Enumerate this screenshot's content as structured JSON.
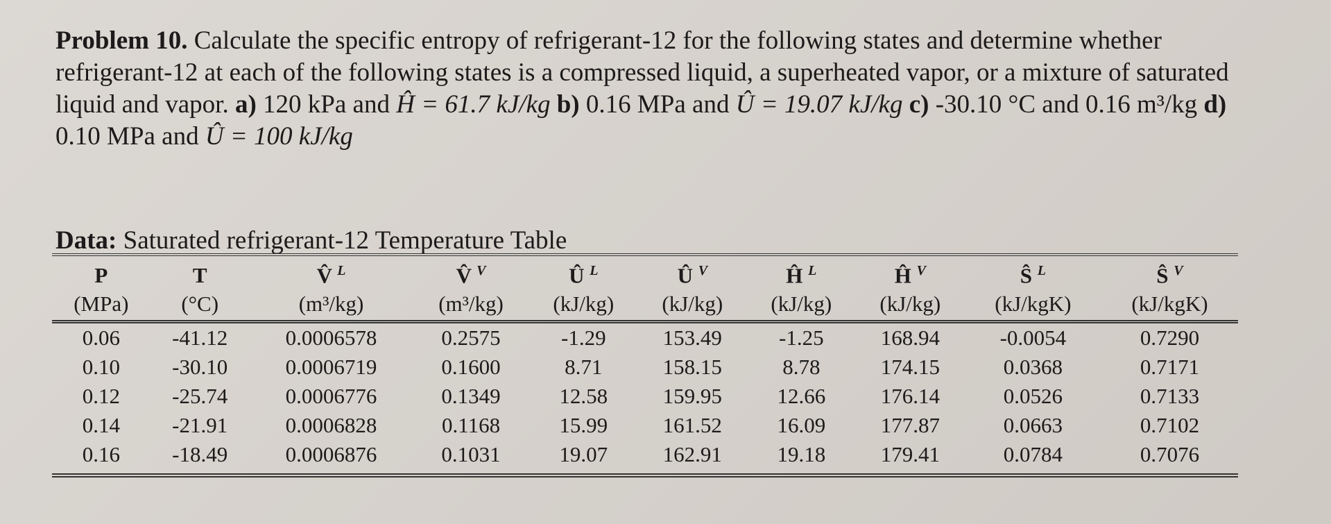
{
  "problem": {
    "label": "Problem 10.",
    "intro": "Calculate the specific entropy of refrigerant-12 for the following states and determine whether refrigerant-12 at each of the following states is a compressed liquid, a superheated vapor, or a mixture of saturated liquid and vapor.",
    "parts": [
      {
        "label": "a)",
        "text": "120 kPa and",
        "math": "Ĥ = 61.7 kJ/kg"
      },
      {
        "label": "b)",
        "text": "0.16 MPa and",
        "math": "Û = 19.07 kJ/kg"
      },
      {
        "label": "c)",
        "text": "-30.10 °C and 0.16 m³/kg"
      },
      {
        "label": "d)",
        "text": "0.10 MPa and",
        "math": "Û = 100 kJ/kg"
      }
    ]
  },
  "data_caption": {
    "label": "Data:",
    "text": "Saturated refrigerant-12 Temperature Table"
  },
  "table": {
    "headers": [
      {
        "symbol": "P",
        "unit": "(MPa)"
      },
      {
        "symbol": "T",
        "unit": "(°C)"
      },
      {
        "symbol": "V̂",
        "sup": "L",
        "unit": "(m³/kg)"
      },
      {
        "symbol": "V̂",
        "sup": "V",
        "unit": "(m³/kg)"
      },
      {
        "symbol": "Û",
        "sup": "L",
        "unit": "(kJ/kg)"
      },
      {
        "symbol": "Û",
        "sup": "V",
        "unit": "(kJ/kg)"
      },
      {
        "symbol": "Ĥ",
        "sup": "L",
        "unit": "(kJ/kg)"
      },
      {
        "symbol": "Ĥ",
        "sup": "V",
        "unit": "(kJ/kg)"
      },
      {
        "symbol": "Ŝ",
        "sup": "L",
        "unit": "(kJ/kgK)"
      },
      {
        "symbol": "Ŝ",
        "sup": "V",
        "unit": "(kJ/kgK)"
      }
    ],
    "rows": [
      [
        "0.06",
        "-41.12",
        "0.0006578",
        "0.2575",
        "-1.29",
        "153.49",
        "-1.25",
        "168.94",
        "-0.0054",
        "0.7290"
      ],
      [
        "0.10",
        "-30.10",
        "0.0006719",
        "0.1600",
        "8.71",
        "158.15",
        "8.78",
        "174.15",
        "0.0368",
        "0.7171"
      ],
      [
        "0.12",
        "-25.74",
        "0.0006776",
        "0.1349",
        "12.58",
        "159.95",
        "12.66",
        "176.14",
        "0.0526",
        "0.7133"
      ],
      [
        "0.14",
        "-21.91",
        "0.0006828",
        "0.1168",
        "15.99",
        "161.52",
        "16.09",
        "177.87",
        "0.0663",
        "0.7102"
      ],
      [
        "0.16",
        "-18.49",
        "0.0006876",
        "0.1031",
        "19.07",
        "162.91",
        "19.18",
        "179.41",
        "0.0784",
        "0.7076"
      ]
    ]
  }
}
